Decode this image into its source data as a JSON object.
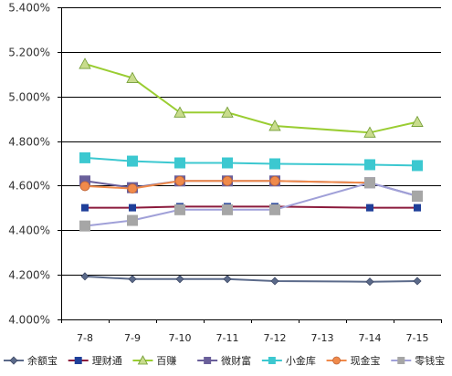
{
  "chart_data": {
    "type": "line",
    "title": "",
    "xlabel": "",
    "ylabel": "",
    "categories": [
      "7-8",
      "7-9",
      "7-10",
      "7-11",
      "7-12",
      "7-13",
      "7-14",
      "7-15"
    ],
    "ylim": [
      4.0,
      5.4
    ],
    "y_tick_labels": [
      "4.000%",
      "4.200%",
      "4.400%",
      "4.600%",
      "4.800%",
      "5.000%",
      "5.200%",
      "5.400%"
    ],
    "y_ticks": [
      4.0,
      4.2,
      4.4,
      4.6,
      4.8,
      5.0,
      5.2,
      5.4
    ],
    "grid": "horizontal",
    "legend_position": "bottom",
    "series": [
      {
        "name": "余额宝",
        "color": "#5B6A8A",
        "marker": "diamond",
        "values": [
          4.193,
          4.181,
          4.181,
          4.181,
          4.172,
          null,
          4.169,
          4.172
        ]
      },
      {
        "name": "理财通",
        "color": "#1F3F99",
        "line_color": "#8B1A3C",
        "marker": "square",
        "values": [
          4.501,
          4.501,
          4.506,
          4.506,
          4.506,
          null,
          4.501,
          4.501
        ]
      },
      {
        "name": "百赚",
        "color": "#9ACD32",
        "marker": "triangle",
        "values": [
          5.146,
          5.083,
          4.928,
          4.928,
          4.868,
          null,
          4.838,
          4.886
        ]
      },
      {
        "name": "微财富",
        "color": "#6A5F9A",
        "marker": "square",
        "values": [
          4.621,
          4.591,
          4.621,
          4.621,
          4.621,
          null,
          4.613,
          4.553
        ]
      },
      {
        "name": "小金库",
        "color": "#3CC8D0",
        "marker": "square",
        "values": [
          4.725,
          4.71,
          4.702,
          4.702,
          4.698,
          null,
          4.694,
          4.69
        ]
      },
      {
        "name": "现金宝",
        "color": "#F08A4B",
        "marker": "circle",
        "values": [
          4.598,
          4.587,
          4.621,
          4.621,
          4.621,
          null,
          4.613,
          null
        ]
      },
      {
        "name": "零钱宝",
        "color": "#A6A6A6",
        "line_color": "#A0A0D8",
        "marker": "square",
        "values": [
          4.419,
          4.444,
          4.492,
          4.492,
          4.492,
          null,
          4.613,
          4.553
        ]
      }
    ]
  }
}
